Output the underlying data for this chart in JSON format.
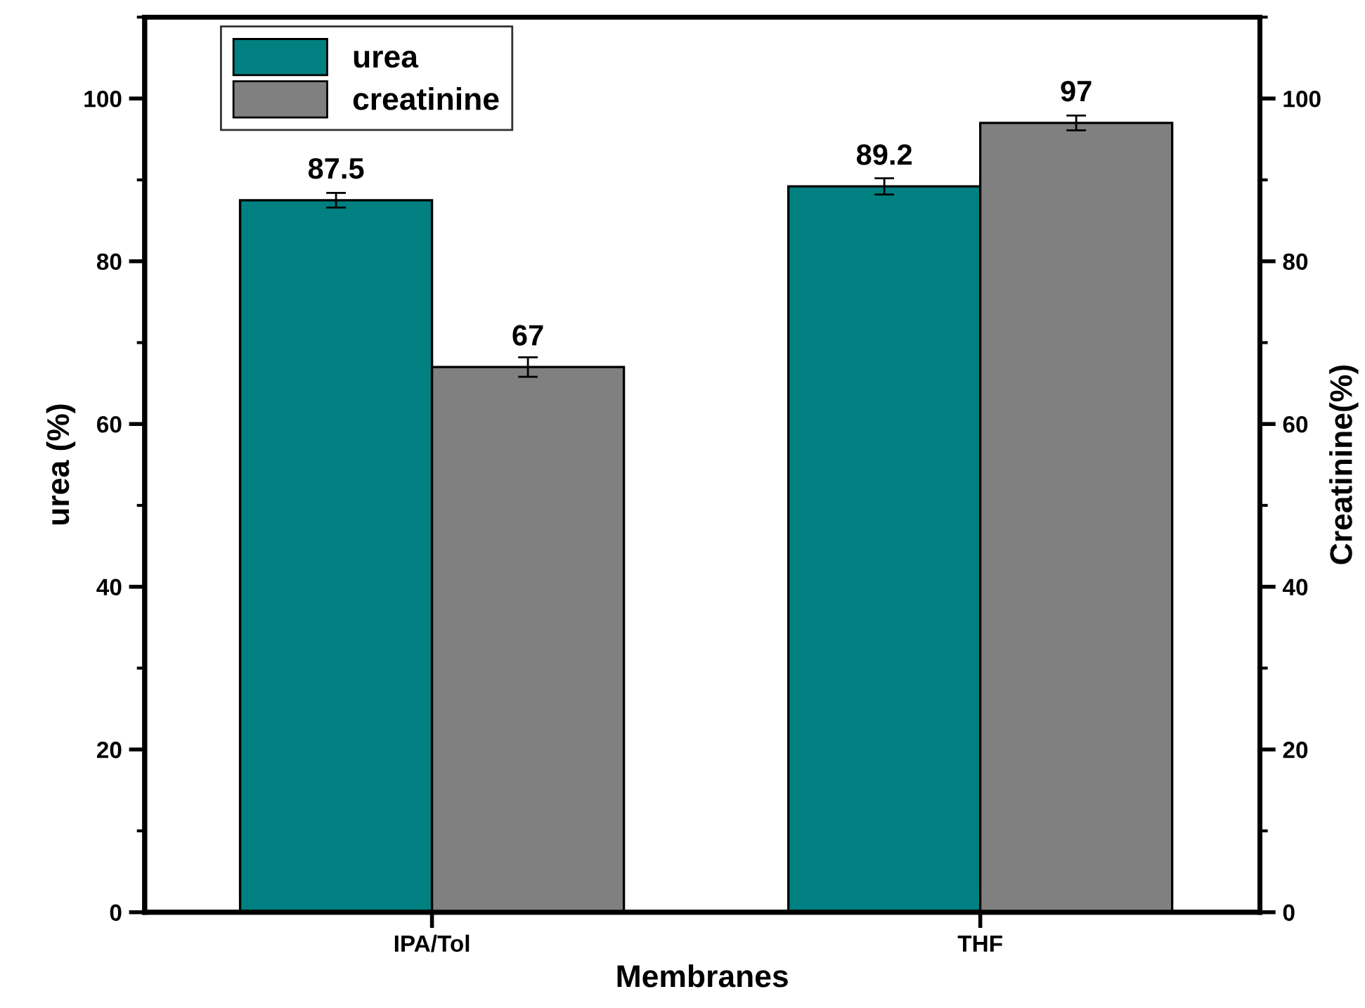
{
  "chart_data": {
    "type": "bar",
    "xlabel": "Membranes",
    "ylabel": "urea (%)",
    "y2label": "Creatinine(%)",
    "categories": [
      "IPA/Tol",
      "THF"
    ],
    "series": [
      {
        "name": "urea",
        "color": "#008080",
        "values": [
          87.5,
          89.2
        ],
        "errors": [
          0.9,
          1.0
        ]
      },
      {
        "name": "creatinine",
        "color": "#808080",
        "values": [
          67,
          97
        ],
        "errors": [
          1.2,
          0.9
        ],
        "axis": "y2"
      }
    ],
    "ylim": [
      0,
      110
    ],
    "yticks": [
      0,
      20,
      40,
      60,
      80,
      100
    ],
    "y2lim": [
      0,
      110
    ],
    "y2ticks": [
      0,
      20,
      40,
      60,
      80,
      100
    ],
    "data_labels": true,
    "legend": "top left",
    "grid": false
  }
}
